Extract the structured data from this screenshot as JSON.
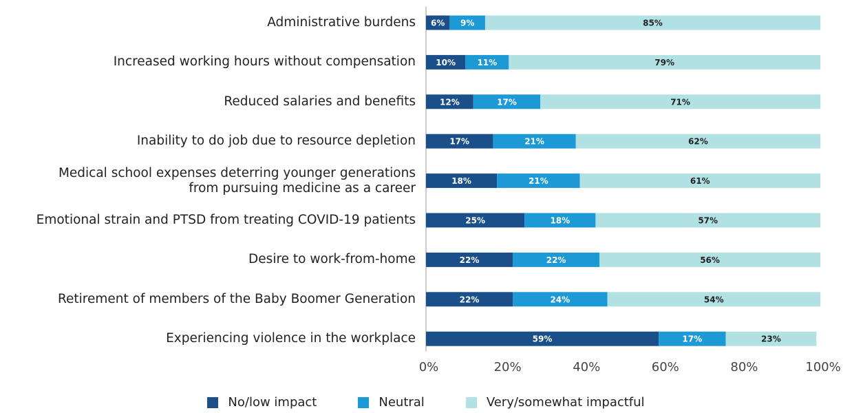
{
  "chart_data": {
    "type": "stacked_barh",
    "categories": [
      "Administrative burdens",
      "Increased working hours without compensation",
      "Reduced salaries and benefits",
      "Inability to do job due to resource depletion",
      "Medical school expenses deterring younger generations\nfrom pursuing medicine as a career",
      "Emotional strain and PTSD from treating COVID-19 patients",
      "Desire to work-from-home",
      "Retirement of members of the Baby Boomer Generation",
      "Experiencing violence in the workplace"
    ],
    "series": [
      {
        "name": "No/low impact",
        "color": "#1b4f8a",
        "values": [
          6,
          10,
          12,
          17,
          18,
          25,
          22,
          22,
          59
        ],
        "value_labels": [
          "6%",
          "10%",
          "12%",
          "17%",
          "18%",
          "25%",
          "22%",
          "22%",
          "59%"
        ]
      },
      {
        "name": "Neutral",
        "color": "#1d9ad6",
        "values": [
          9,
          11,
          17,
          21,
          21,
          18,
          22,
          24,
          17
        ],
        "value_labels": [
          "9%",
          "11%",
          "17%",
          "21%",
          "21%",
          "18%",
          "22%",
          "24%",
          "17%"
        ]
      },
      {
        "name": "Very/somewhat impactful",
        "color": "#b2e1e3",
        "values": [
          85,
          79,
          71,
          62,
          61,
          57,
          56,
          54,
          23
        ],
        "value_labels": [
          "85%",
          "79%",
          "71%",
          "62%",
          "61%",
          "57%",
          "56%",
          "54%",
          "23%"
        ]
      }
    ],
    "xlim": [
      0,
      100
    ],
    "xticks": [
      {
        "value": 0,
        "label": "0%"
      },
      {
        "value": 20,
        "label": "20%"
      },
      {
        "value": 40,
        "label": "40%"
      },
      {
        "value": 60,
        "label": "60%"
      },
      {
        "value": 80,
        "label": "80%"
      },
      {
        "value": 100,
        "label": "100%"
      }
    ],
    "grid": false,
    "legend": "bottom"
  }
}
